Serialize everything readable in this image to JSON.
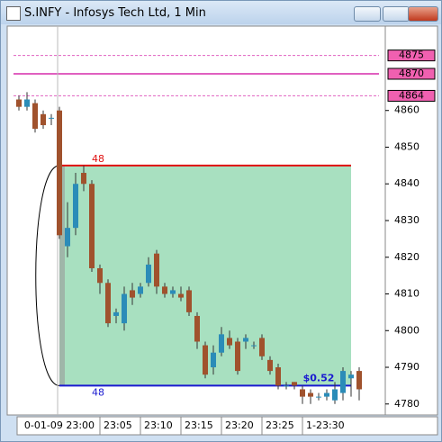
{
  "window_title": "S.INFY - Infosys Tech Ltd, 1 Min",
  "chart_data": {
    "type": "candlestick",
    "colors": {
      "up": "#2b8cb8",
      "down": "#a0522d",
      "box": "#a8e0c0",
      "entry_line": "#e01010",
      "exit_line": "#1a1ad0",
      "level_line": "#e060c0"
    },
    "ylim": [
      4777,
      4883
    ],
    "yticks": [
      4780,
      4790,
      4800,
      4810,
      4820,
      4830,
      4840,
      4850,
      4860
    ],
    "xticks": [
      {
        "value": 5,
        "label": "0-01-09 23:00"
      },
      {
        "value": 10,
        "label": "23:05"
      },
      {
        "value": 15,
        "label": "23:10"
      },
      {
        "value": 20,
        "label": "23:15"
      },
      {
        "value": 25,
        "label": "23:20"
      },
      {
        "value": 30,
        "label": "23:25"
      },
      {
        "value": 35,
        "label": "1-23:30"
      }
    ],
    "open": [
      4863,
      4861,
      4862,
      4859,
      4858,
      4860,
      4823,
      4828,
      4843,
      4840,
      4817,
      4813,
      4804,
      4802,
      4811,
      4810,
      4813,
      4821,
      4812,
      4810,
      4810,
      4811,
      4804,
      4796,
      4790,
      4794,
      4798,
      4797,
      4797,
      4796,
      4798,
      4792,
      4790,
      4785,
      4786,
      4784,
      4783,
      4782,
      4782,
      4781,
      4783,
      4787,
      4789
    ],
    "high": [
      4864,
      4865,
      4863,
      4860,
      4859,
      4861,
      4835,
      4843,
      4845,
      4841,
      4818,
      4814,
      4806,
      4812,
      4813,
      4813,
      4820,
      4822,
      4813,
      4812,
      4812,
      4812,
      4805,
      4797,
      4796,
      4801,
      4800,
      4798,
      4799,
      4797,
      4799,
      4793,
      4791,
      4786,
      4786,
      4785,
      4784,
      4783,
      4784,
      4786,
      4790,
      4789,
      4790
    ],
    "low": [
      4860,
      4860,
      4854,
      4855,
      4856,
      4825,
      4820,
      4826,
      4838,
      4816,
      4810,
      4801,
      4802,
      4800,
      4807,
      4809,
      4812,
      4810,
      4809,
      4809,
      4808,
      4804,
      4795,
      4787,
      4788,
      4793,
      4795,
      4788,
      4795,
      4795,
      4792,
      4788,
      4784,
      4784,
      4784,
      4780,
      4780,
      4781,
      4781,
      4780,
      4781,
      4782,
      4781
    ],
    "close": [
      4861,
      4863,
      4855,
      4856,
      4858,
      4826,
      4828,
      4840,
      4840,
      4817,
      4813,
      4802,
      4805,
      4810,
      4809,
      4812,
      4818,
      4812,
      4810,
      4811,
      4809,
      4805,
      4797,
      4788,
      4794,
      4799,
      4796,
      4789,
      4798,
      4796,
      4793,
      4789,
      4785,
      4785,
      4785,
      4782,
      4782,
      4782,
      4783,
      4784,
      4789,
      4788,
      4784
    ],
    "levels": [
      4875,
      4870,
      4864
    ],
    "level_labels": [
      "4875",
      "4870",
      "4864"
    ],
    "trade": {
      "entry": 4845,
      "exit": 4785,
      "entry_label": "48",
      "exit_label": "48",
      "pnl": "$0.52"
    }
  }
}
